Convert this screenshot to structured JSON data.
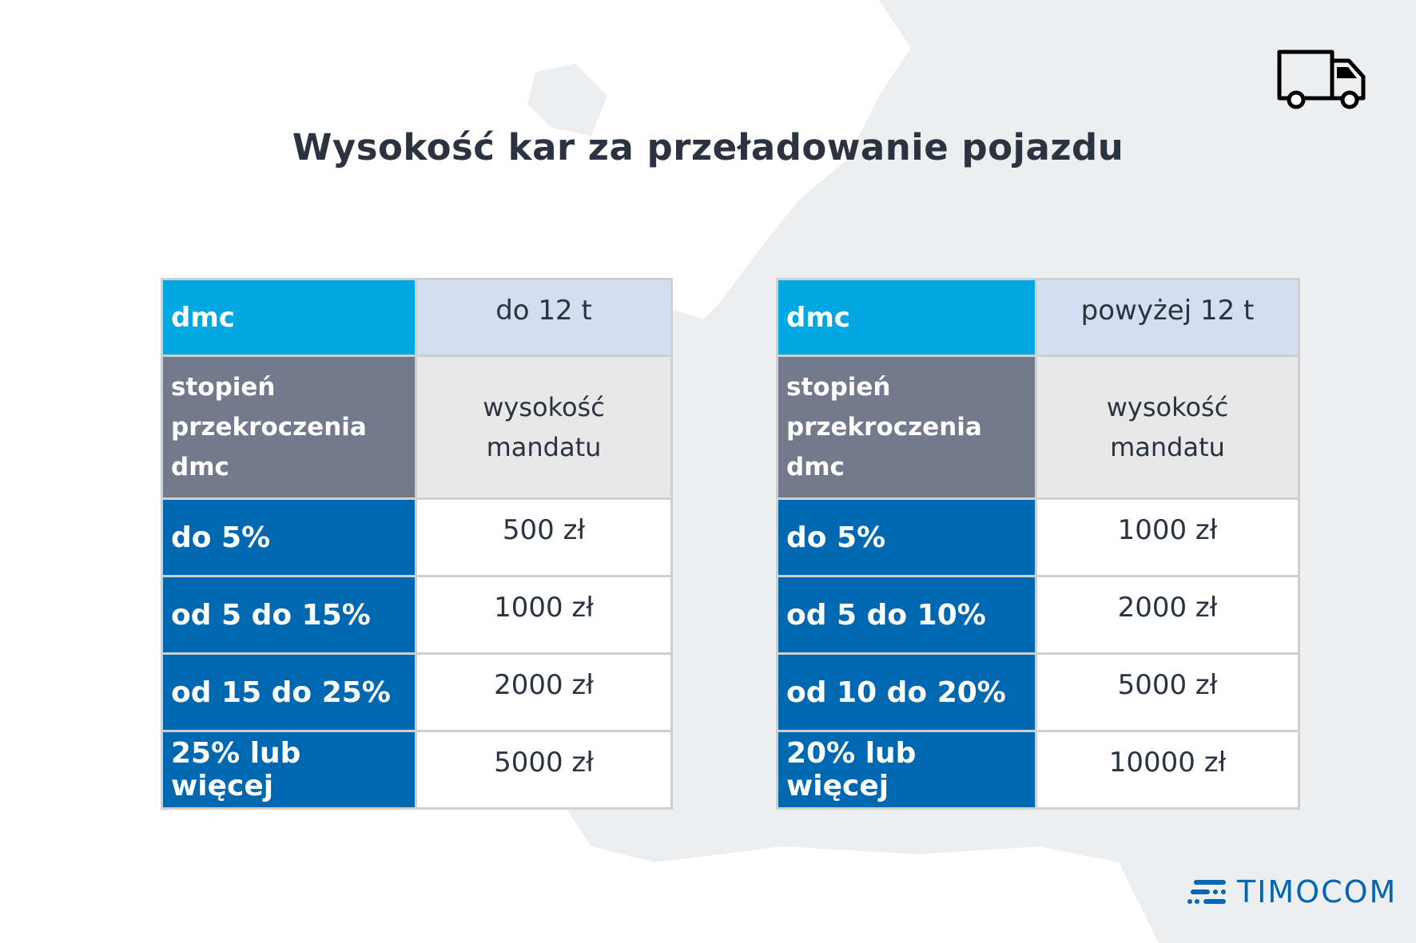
{
  "title": "Wysokość kar za przeładowanie pojazdu",
  "colors": {
    "header_blue": "#00a7e1",
    "row_blue": "#0067b1",
    "grey": "#727a8b",
    "light_blue": "#d3def0",
    "text": "#2b3340"
  },
  "icons": {
    "top_right": "truck-icon"
  },
  "logo": "TIMOCOM",
  "tables": [
    {
      "header": {
        "label": "dmc",
        "value": "do 12 t"
      },
      "subheader": {
        "label": "stopień przekroczenia dmc",
        "value": "wysokość mandatu"
      },
      "rows": [
        {
          "label": "do 5%",
          "value": "500 zł"
        },
        {
          "label": "od 5 do 15%",
          "value": "1000 zł"
        },
        {
          "label": "od 15 do 25%",
          "value": "2000 zł"
        },
        {
          "label": "25% lub więcej",
          "value": "5000 zł"
        }
      ]
    },
    {
      "header": {
        "label": "dmc",
        "value": "powyżej 12 t"
      },
      "subheader": {
        "label": "stopień przekroczenia dmc",
        "value": "wysokość mandatu"
      },
      "rows": [
        {
          "label": "do 5%",
          "value": "1000 zł"
        },
        {
          "label": "od 5 do 10%",
          "value": "2000 zł"
        },
        {
          "label": "od 10 do 20%",
          "value": "5000 zł"
        },
        {
          "label": "20% lub więcej",
          "value": "10000 zł"
        }
      ]
    }
  ]
}
